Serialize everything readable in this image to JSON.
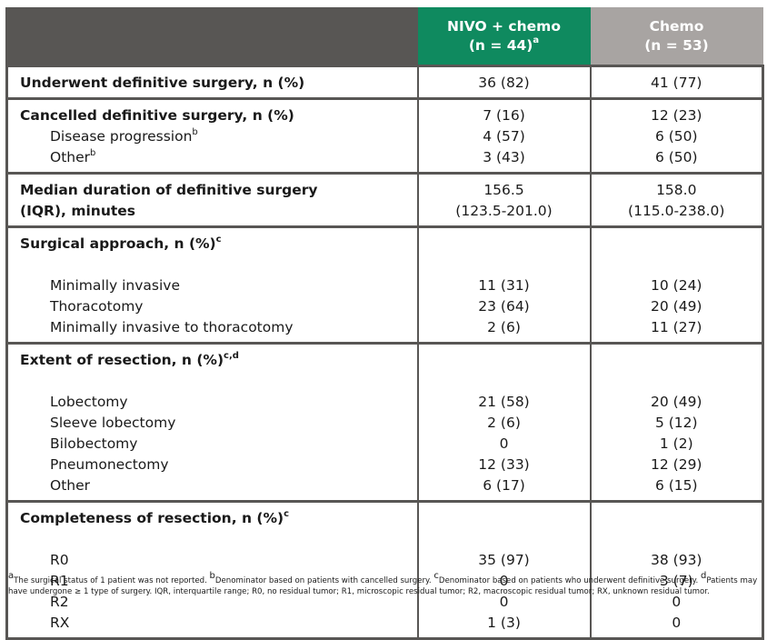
{
  "header": {
    "col1_line1": "NIVO + chemo",
    "col1_line2": "(n = 44)",
    "col1_sup": "a",
    "col2_line1": "Chemo",
    "col2_line2": "(n = 53)"
  },
  "rows": {
    "underwent": {
      "label": "Underwent definitive surgery, n (%)",
      "nivo": "36 (82)",
      "chemo": "41 (77)"
    },
    "cancelled": {
      "label": "Cancelled definitive surgery, n (%)",
      "nivo": "7 (16)",
      "chemo": "12 (23)",
      "sub": [
        {
          "label": "Disease progression",
          "sup": "b",
          "nivo": "4 (57)",
          "chemo": "6 (50)"
        },
        {
          "label": "Other",
          "sup": "b",
          "nivo": "3 (43)",
          "chemo": "6 (50)"
        }
      ]
    },
    "median": {
      "label_line1": "Median duration of definitive surgery",
      "label_line2": "(IQR), minutes",
      "nivo_line1": "156.5",
      "nivo_line2": "(123.5-201.0)",
      "chemo_line1": "158.0",
      "chemo_line2": "(115.0-238.0)"
    },
    "approach": {
      "label": "Surgical approach, n (%)",
      "sup": "c",
      "sub": [
        {
          "label": "Minimally invasive",
          "nivo": "11 (31)",
          "chemo": "10 (24)"
        },
        {
          "label": "Thoracotomy",
          "nivo": "23 (64)",
          "chemo": "20 (49)"
        },
        {
          "label": "Minimally invasive to thoracotomy",
          "nivo": "2 (6)",
          "chemo": "11 (27)"
        }
      ]
    },
    "extent": {
      "label": "Extent of resection, n (%)",
      "sup": "c,d",
      "sub": [
        {
          "label": "Lobectomy",
          "nivo": "21 (58)",
          "chemo": "20 (49)"
        },
        {
          "label": "Sleeve lobectomy",
          "nivo": "2 (6)",
          "chemo": "5 (12)"
        },
        {
          "label": "Bilobectomy",
          "nivo": "0",
          "chemo": "1 (2)"
        },
        {
          "label": "Pneumonectomy",
          "nivo": "12 (33)",
          "chemo": "12 (29)"
        },
        {
          "label": "Other",
          "nivo": "6 (17)",
          "chemo": "6 (15)"
        }
      ]
    },
    "completeness": {
      "label": "Completeness of resection, n (%)",
      "sup": "c",
      "sub": [
        {
          "label": "R0",
          "nivo": "35 (97)",
          "chemo": "38 (93)"
        },
        {
          "label": "R1",
          "nivo": "0",
          "chemo": "3 (7)"
        },
        {
          "label": "R2",
          "nivo": "0",
          "chemo": "0"
        },
        {
          "label": "RX",
          "nivo": "1 (3)",
          "chemo": "0"
        }
      ]
    }
  },
  "footnote": {
    "sup_a": "a",
    "text_a": "The surgical status of 1 patient was not reported. ",
    "sup_b": "b",
    "text_b": "Denominator based on patients with cancelled surgery. ",
    "sup_c": "c",
    "text_c": "Denominator based on patients who underwent definitive surgery. ",
    "sup_d": "d",
    "text_d": "Patients may have undergone ≥ 1 type of surgery. IQR, interquartile range; R0, no residual tumor; R1, microscopic residual tumor; R2, macroscopic residual tumor; RX, unknown residual tumor."
  },
  "colors": {
    "frame": "#585654",
    "nivo_header": "#0f8a5f",
    "chemo_header": "#a8a4a2"
  }
}
